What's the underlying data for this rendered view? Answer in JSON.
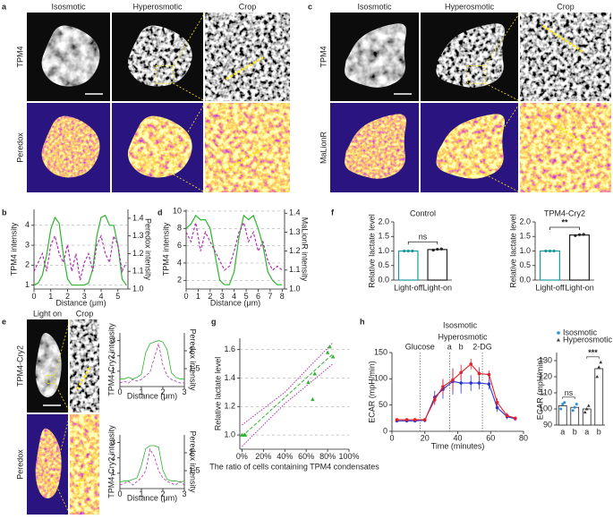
{
  "figure": {
    "panel_labels": [
      "a",
      "b",
      "c",
      "d",
      "e",
      "f",
      "g",
      "h"
    ],
    "a": {
      "columns": [
        "Isosmotic",
        "Hyperosmotic",
        "Crop"
      ],
      "rows": [
        "TPM4",
        "Peredox"
      ]
    },
    "c": {
      "columns": [
        "Isosmotic",
        "Hyperosmotic",
        "Crop"
      ],
      "rows": [
        "TPM4",
        "MaLionR"
      ]
    },
    "e": {
      "columns": [
        "Light on",
        "Crop"
      ],
      "rows": [
        "TPM4-Cry2",
        "Peredox"
      ]
    }
  },
  "chart_data": [
    {
      "type": "line",
      "xlabel": "Distance (μm)",
      "ylabel": "TPM4 intensity",
      "y2label": "Peredox intensity",
      "x": [
        0,
        0.25,
        0.5,
        0.75,
        1,
        1.25,
        1.5,
        1.75,
        2,
        2.25,
        2.5,
        2.75,
        3,
        3.25,
        3.5,
        3.75,
        4,
        4.25,
        4.5,
        4.75,
        5,
        5.25,
        5.5
      ],
      "series": [
        {
          "name": "TPM4",
          "color": "#2db52d",
          "dashed": false,
          "values": [
            1.0,
            1.1,
            1.5,
            2.5,
            3.8,
            4.4,
            4.1,
            2.5,
            1.3,
            1.0,
            1.0,
            1.0,
            1.0,
            1.1,
            1.8,
            3.5,
            4.4,
            4.5,
            4.0,
            4.0,
            3.0,
            1.3,
            1.0
          ]
        },
        {
          "name": "Peredox",
          "color": "#b030b0",
          "dashed": true,
          "axis": "y2",
          "values": [
            1.1,
            1.15,
            1.2,
            1.1,
            1.25,
            1.3,
            1.2,
            1.15,
            1.25,
            1.1,
            1.2,
            1.05,
            1.15,
            1.2,
            1.1,
            1.25,
            1.3,
            1.2,
            1.15,
            1.3,
            1.25,
            1.1,
            1.15
          ]
        }
      ],
      "xlim": [
        0,
        5.6
      ],
      "xticks": [
        0,
        1,
        2,
        3,
        4,
        5
      ],
      "ylim": [
        0.8,
        4.8
      ],
      "yticks": [
        1,
        2,
        3,
        4
      ],
      "y2lim": [
        1.0,
        1.45
      ],
      "y2ticks": [
        {
          "value": 1,
          "label": "1.0"
        },
        1.1,
        1.2,
        1.3,
        1.4
      ],
      "grid": true
    },
    {
      "type": "line",
      "xlabel": "Distance (μm)",
      "ylabel": "TPM4 intensity",
      "y2label": "MaLionR intensity",
      "x": [
        0,
        0.4,
        0.8,
        1.2,
        1.6,
        2,
        2.4,
        2.8,
        3.2,
        3.6,
        4,
        4.4,
        4.8,
        5.2,
        5.6,
        6,
        6.4,
        6.8,
        7.2,
        7.6,
        8
      ],
      "series": [
        {
          "name": "TPM4",
          "color": "#2db52d",
          "dashed": false,
          "values": [
            8,
            8.5,
            9.5,
            9,
            9,
            8,
            5,
            2,
            1.5,
            1.5,
            3,
            7,
            9.5,
            9,
            9.5,
            8,
            6,
            3,
            2,
            1.5,
            1.5
          ]
        },
        {
          "name": "MaLionR",
          "color": "#b030b0",
          "dashed": true,
          "axis": "y2",
          "values": [
            1.3,
            1.25,
            1.35,
            1.2,
            1.3,
            1.25,
            1.2,
            1.15,
            1.1,
            1.12,
            1.2,
            1.3,
            1.35,
            1.25,
            1.3,
            1.2,
            1.25,
            1.15,
            1.1,
            1.12,
            1.1
          ]
        }
      ],
      "xlim": [
        0,
        8.2
      ],
      "xticks": [
        0,
        1,
        2,
        3,
        4,
        5,
        6,
        7,
        8
      ],
      "ylim": [
        1,
        10.2
      ],
      "yticks": [
        2,
        4,
        6,
        8,
        10
      ],
      "y2lim": [
        1.0,
        1.42
      ],
      "y2ticks": [
        {
          "value": 1,
          "label": "1.0"
        },
        1.1,
        1.2,
        1.3,
        1.4
      ],
      "grid": true
    },
    {
      "type": "line",
      "xlabel": "Distance (μm)",
      "ylabel": "TPM4-Cry2 intensity",
      "y2label": "Peredox intensity",
      "x": [
        0,
        0.2,
        0.4,
        0.6,
        0.8,
        1,
        1.2,
        1.4,
        1.6,
        1.8,
        2,
        2.2,
        2.4,
        2.6,
        2.8,
        3
      ],
      "series": [
        {
          "name": "TPM4-Cry2",
          "color": "#2db52d",
          "dashed": false,
          "values": [
            0.5,
            0.5,
            0.6,
            0.5,
            0.6,
            0.8,
            2.2,
            2.8,
            2.9,
            3.0,
            2.9,
            2.4,
            0.9,
            0.6,
            0.5,
            0.5
          ]
        },
        {
          "name": "Peredox",
          "color": "#b030b0",
          "dashed": true,
          "axis": "y2",
          "values": [
            1.1,
            1.15,
            1.1,
            1.2,
            1.15,
            1.2,
            1.3,
            1.4,
            1.8,
            2.2,
            1.6,
            1.3,
            1.2,
            1.15,
            1.1,
            1.1
          ]
        }
      ],
      "xlim": [
        0,
        3
      ],
      "xticks": [
        0,
        1,
        2,
        3
      ],
      "ylim": [
        0,
        3.5
      ],
      "yticks": [
        1,
        2,
        3
      ],
      "y2lim": [
        1,
        2.5
      ],
      "y2ticks": [
        1.5,
        2
      ],
      "grid": false
    },
    {
      "type": "line",
      "xlabel": "Distance (μm)",
      "ylabel": "TPM4-Cry2 intensity",
      "y2label": "Peredox intensity",
      "x": [
        0,
        0.2,
        0.4,
        0.6,
        0.8,
        1,
        1.2,
        1.4,
        1.6,
        1.8,
        2,
        2.2,
        2.4,
        2.6,
        2.8,
        3
      ],
      "series": [
        {
          "name": "TPM4-Cry2",
          "color": "#2db52d",
          "dashed": false,
          "values": [
            0.4,
            0.5,
            0.5,
            0.6,
            0.7,
            1.5,
            2.6,
            2.8,
            2.8,
            2.7,
            1.2,
            0.6,
            0.5,
            0.5,
            0.4,
            0.5
          ]
        },
        {
          "name": "Peredox",
          "color": "#b030b0",
          "dashed": true,
          "axis": "y2",
          "values": [
            1.1,
            1.15,
            1.2,
            1.1,
            1.2,
            1.3,
            1.5,
            2.1,
            1.9,
            1.5,
            1.3,
            1.2,
            1.15,
            1.1,
            1.2,
            1.1
          ]
        }
      ],
      "xlim": [
        0,
        3
      ],
      "xticks": [
        0,
        1,
        2,
        3
      ],
      "ylim": [
        0,
        3.5
      ],
      "yticks": [
        1,
        2,
        3
      ],
      "y2lim": [
        1,
        2.5
      ],
      "y2ticks": [
        1.5,
        2
      ],
      "grid": false
    },
    {
      "type": "bar",
      "title": "Control",
      "ylabel": "Relative lactate level",
      "categories": [
        "Light-off",
        "Light-on"
      ],
      "values": [
        1.0,
        1.05
      ],
      "colors": [
        "#1a9b9b",
        "#222222"
      ],
      "points": [
        [
          1.0,
          1.0,
          1.0
        ],
        [
          1.03,
          1.06,
          1.07
        ]
      ],
      "annotation": "ns",
      "ylim": [
        0,
        2
      ],
      "yticks": [
        {
          "value": 0,
          "label": "0.0"
        },
        0.5,
        {
          "value": 1,
          "label": "1.0"
        },
        1.5,
        {
          "value": 2,
          "label": "2.0"
        }
      ]
    },
    {
      "type": "bar",
      "title": "TPM4-Cry2",
      "ylabel": "Relative lactate level",
      "categories": [
        "Light-off",
        "Light-on"
      ],
      "values": [
        1.0,
        1.55
      ],
      "colors": [
        "#1a9b9b",
        "#222222"
      ],
      "points": [
        [
          1.0,
          1.0,
          1.0
        ],
        [
          1.53,
          1.56,
          1.57
        ]
      ],
      "annotation": "**",
      "ylim": [
        0,
        2
      ],
      "yticks": [
        {
          "value": 0,
          "label": "0.0"
        },
        0.5,
        {
          "value": 1,
          "label": "1.0"
        },
        1.5,
        {
          "value": 2,
          "label": "2.0"
        }
      ]
    },
    {
      "type": "scatter",
      "xlabel": "The ratio of cells containing TPM4 condensates",
      "ylabel": "Relative lactate level",
      "x": [
        0,
        2,
        3,
        62,
        66,
        68,
        80,
        82,
        85
      ],
      "values": [
        1.0,
        1.0,
        1.0,
        1.37,
        1.25,
        1.43,
        1.58,
        1.62,
        1.55
      ],
      "color": "#2db52d",
      "fit": {
        "x": [
          0,
          85
        ],
        "y": [
          0.99,
          1.57
        ]
      },
      "ci_upper": {
        "x": [
          0,
          40,
          85
        ],
        "y": [
          1.07,
          1.3,
          1.65
        ]
      },
      "ci_lower": {
        "x": [
          0,
          40,
          85
        ],
        "y": [
          0.92,
          1.22,
          1.5
        ]
      },
      "xlim": [
        -2,
        100
      ],
      "xticks": [
        {
          "value": 0,
          "label": "0%"
        },
        {
          "value": 20,
          "label": "20%"
        },
        {
          "value": 40,
          "label": "40%"
        },
        {
          "value": 60,
          "label": "60%"
        },
        {
          "value": 80,
          "label": "80%"
        },
        {
          "value": 100,
          "label": "100%"
        }
      ],
      "ylim": [
        0.9,
        1.68
      ],
      "yticks": [
        {
          "value": 1,
          "label": "1.0"
        },
        1.2,
        1.4,
        1.6
      ],
      "grid": true
    },
    {
      "type": "line",
      "xlabel": "Time (minutes)",
      "ylabel": "ECAR (mpH/min)",
      "x": [
        3,
        9,
        14,
        20,
        26,
        31,
        37,
        42,
        48,
        53,
        59,
        64,
        70,
        75
      ],
      "series": [
        {
          "name": "Isosmotic",
          "color": "#2a35d6",
          "dashed": false,
          "values": [
            20,
            20,
            20,
            21,
            65,
            80,
            95,
            92,
            92,
            92,
            90,
            45,
            28,
            24
          ],
          "errors": [
            3,
            3,
            3,
            4,
            12,
            18,
            25,
            20,
            15,
            12,
            10,
            8,
            5,
            4
          ]
        },
        {
          "name": "Hyperosmotic",
          "color": "#e0202a",
          "dashed": false,
          "values": [
            22,
            22,
            22,
            22,
            60,
            85,
            98,
            112,
            128,
            110,
            108,
            55,
            30,
            25
          ],
          "errors": [
            3,
            3,
            3,
            3,
            10,
            15,
            20,
            15,
            10,
            12,
            8,
            8,
            5,
            3
          ]
        }
      ],
      "events": [
        {
          "x": 17,
          "label": "Glucose"
        },
        {
          "x": 35,
          "label": "a"
        },
        {
          "x": 55,
          "label": "2-DG"
        }
      ],
      "annotations": [
        {
          "x": 42,
          "label": "b"
        }
      ],
      "xlim": [
        0,
        80
      ],
      "xticks": [
        0,
        20,
        40,
        60,
        80
      ],
      "ylim": [
        0,
        150
      ],
      "yticks": [
        0,
        50,
        100,
        150
      ],
      "grid": false
    },
    {
      "type": "groupbar",
      "ylabel": "ECAR (mpH/min)",
      "groups": [
        {
          "name": "Isosmotic",
          "color": "#2a8fd4",
          "categories": [
            "a",
            "b"
          ],
          "values": [
            102,
            101
          ],
          "points": [
            [
              100,
              103,
              104
            ],
            [
              99,
              101,
              103
            ]
          ],
          "annotation": "ns"
        },
        {
          "name": "Hyperosmotic",
          "color": "#333333",
          "categories": [
            "a",
            "b"
          ],
          "values": [
            100,
            125
          ],
          "points": [
            [
              98,
              100,
              102
            ],
            [
              120,
              126,
              129
            ]
          ],
          "annotation": "***"
        }
      ],
      "ylim": [
        90,
        135
      ],
      "yticks": [
        90,
        100,
        110,
        120,
        130
      ]
    }
  ]
}
